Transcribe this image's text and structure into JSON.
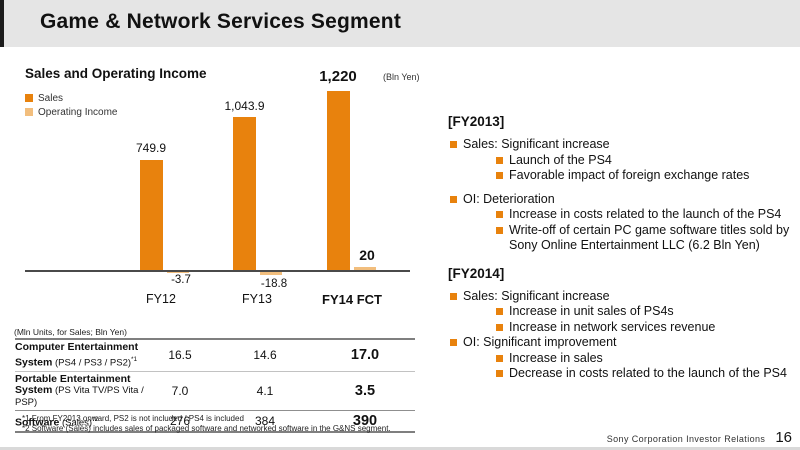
{
  "slide": {
    "title": "Game & Network Services Segment",
    "colors": {
      "accent": "#e8820d",
      "accent_light": "#f2be7d"
    },
    "footer": {
      "text": "Sony Corporation  Investor Relations",
      "page": "16"
    }
  },
  "chart_data": {
    "type": "bar",
    "title": "Sales and Operating Income",
    "unit_label": "(Bln Yen)",
    "categories": [
      "FY12",
      "FY13",
      "FY14 FCT"
    ],
    "series": [
      {
        "name": "Sales",
        "color": "#e8820d",
        "values": [
          749.9,
          1043.9,
          1220
        ],
        "labels": [
          "749.9",
          "1,043.9",
          "1,220"
        ]
      },
      {
        "name": "Operating Income",
        "color": "#f2be7d",
        "values": [
          -3.7,
          -18.8,
          20
        ],
        "labels": [
          "-3.7",
          "-18.8",
          "20"
        ]
      }
    ],
    "baseline": 0,
    "ylim": [
      -60,
      1350
    ],
    "grid": false,
    "legend_position": "top-left",
    "notes": "FY14 FCT labels shown bold; FY14 is a forecast"
  },
  "table": {
    "caption": "(Mln Units, for Sales; Bln Yen)",
    "rows": [
      {
        "name": "Computer Entertainment",
        "name2": "System",
        "detail": " (PS4 / PS3 / PS2)",
        "sup": "*1",
        "values": [
          "16.5",
          "14.6",
          "17.0"
        ]
      },
      {
        "name": "Portable Entertainment",
        "name2": "System",
        "detail": " (PS Vita TV/PS Vita / PSP)",
        "sup": "",
        "values": [
          "7.0",
          "4.1",
          "3.5"
        ]
      },
      {
        "name": "Software",
        "name2": "",
        "detail": " (Sales)",
        "sup": "*2",
        "values": [
          "276",
          "384",
          "390"
        ]
      }
    ]
  },
  "footnotes": [
    "*1 From FY2013 onward, PS2 is not included / PS4 is included",
    "*2 Software (Sales) includes sales of packaged software and networked software in the G&NS segment."
  ],
  "right_panel": {
    "sections": [
      {
        "header": "[FY2013]",
        "items": [
          {
            "level": 1,
            "text": "Sales: Significant increase"
          },
          {
            "level": 2,
            "text": "Launch of the PS4"
          },
          {
            "level": 2,
            "text": "Favorable impact of foreign exchange rates"
          },
          {
            "level": 1,
            "text": "OI: Deterioration",
            "gap": true
          },
          {
            "level": 2,
            "text": "Increase in costs related to the launch of the PS4"
          },
          {
            "level": 2,
            "text": "Write-off of certain PC game software titles sold by Sony Online Entertainment LLC  (6.2 Bln Yen)"
          }
        ]
      },
      {
        "header": "[FY2014]",
        "items": [
          {
            "level": 1,
            "text": "Sales: Significant increase"
          },
          {
            "level": 2,
            "text": "Increase in unit sales of PS4s"
          },
          {
            "level": 2,
            "text": "Increase in network services revenue"
          },
          {
            "level": 1,
            "text": "OI: Significant improvement"
          },
          {
            "level": 2,
            "text": "Increase in sales"
          },
          {
            "level": 2,
            "text": "Decrease in costs related to the launch of the PS4"
          }
        ]
      }
    ]
  }
}
